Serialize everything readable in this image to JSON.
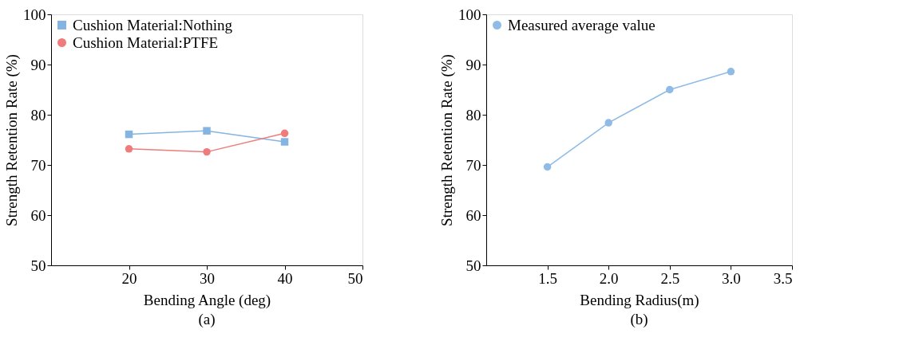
{
  "chart_data": [
    {
      "type": "line",
      "xlabel": "Bending Angle (deg)",
      "ylabel": "Strength Retention Rate (%)",
      "xlim": [
        10,
        50
      ],
      "xticks": [
        20,
        30,
        40,
        50
      ],
      "ylim": [
        50,
        100
      ],
      "yticks": [
        50,
        60,
        70,
        80,
        90,
        100
      ],
      "legend": "top left",
      "grid": false,
      "annotations": [
        "(a)"
      ],
      "series": [
        {
          "name": "Cushion Material:Nothing",
          "color": "#84b4e2",
          "marker": "square",
          "x": [
            20,
            30,
            40
          ],
          "values": [
            76.1,
            76.8,
            74.6
          ]
        },
        {
          "name": "Cushion Material:PTFE",
          "color": "#f07b7b",
          "marker": "circle",
          "x": [
            20,
            30,
            40
          ],
          "values": [
            73.2,
            72.6,
            76.3
          ]
        }
      ]
    },
    {
      "type": "line",
      "xlabel": "Bending Radius(m)",
      "ylabel": "Strength Retention Rate (%)",
      "xlim": [
        1.0,
        3.5
      ],
      "xticks": [
        {
          "value": 1.5,
          "label": "1.5"
        },
        {
          "value": 2.0,
          "label": "2.0"
        },
        {
          "value": 2.5,
          "label": "2.5"
        },
        {
          "value": 3.0,
          "label": "3.0"
        },
        {
          "value": 3.5,
          "label": "3.5"
        }
      ],
      "ylim": [
        50,
        100
      ],
      "yticks": [
        50,
        60,
        70,
        80,
        90,
        100
      ],
      "legend": "top left",
      "grid": false,
      "annotations": [
        "(b)"
      ],
      "series": [
        {
          "name": "Measured average value",
          "color": "#8fbbe6",
          "marker": "circle",
          "x": [
            1.5,
            2.0,
            2.5,
            3.0
          ],
          "values": [
            69.6,
            78.4,
            85.0,
            88.6
          ]
        }
      ]
    }
  ]
}
